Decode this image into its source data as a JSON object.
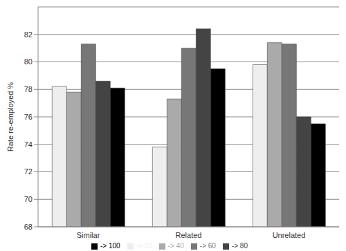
{
  "chart_data": {
    "type": "bar",
    "y_label": "Rate re-employed %",
    "categories": [
      "Similar",
      "Related",
      "Unrelated"
    ],
    "series": [
      {
        "name": "-> 20",
        "color": "#eeeeee",
        "values": [
          78.2,
          73.8,
          79.8
        ]
      },
      {
        "name": "-> 40",
        "color": "#aaaaaa",
        "values": [
          77.8,
          77.3,
          81.4
        ]
      },
      {
        "name": "-> 60",
        "color": "#777777",
        "values": [
          81.3,
          81.0,
          81.3
        ]
      },
      {
        "name": "-> 80",
        "color": "#444444",
        "values": [
          78.6,
          82.4,
          76.0
        ]
      },
      {
        "name": "-> 100",
        "color": "#000000",
        "values": [
          78.1,
          79.5,
          75.5
        ]
      }
    ],
    "ylim": [
      68,
      84
    ],
    "yticks": [
      68,
      70,
      72,
      74,
      76,
      78,
      80,
      82
    ],
    "grid": true,
    "legend": "bottom"
  }
}
